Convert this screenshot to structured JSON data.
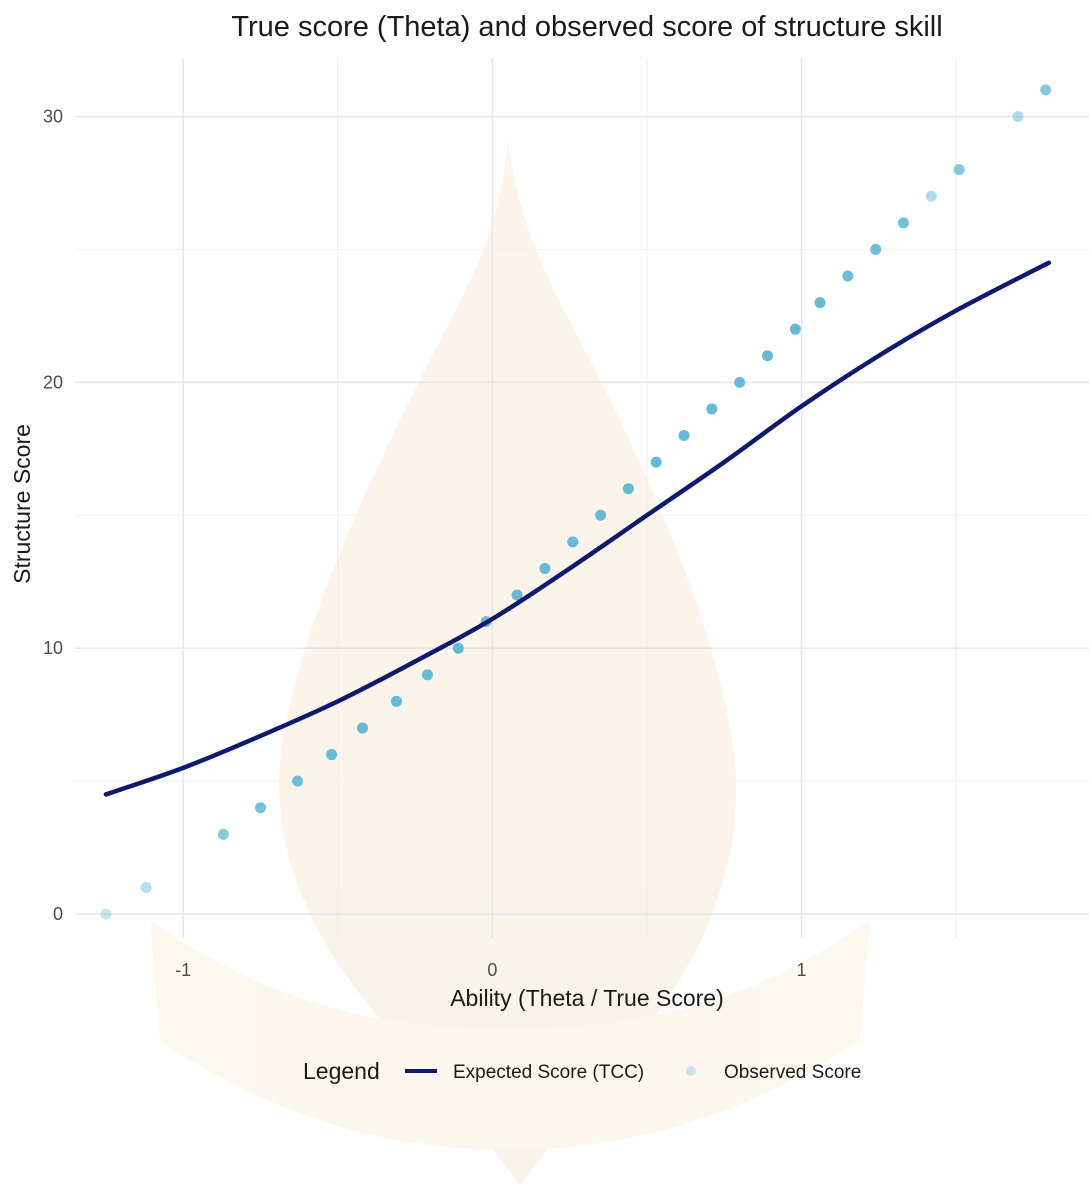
{
  "chart_data": {
    "type": "scatter",
    "title": "True score (Theta) and observed score of structure skill",
    "xlabel": "Ability (Theta / True Score)",
    "ylabel": "Structure Score",
    "xlim": [
      -1.35,
      1.93
    ],
    "ylim": [
      -0.9,
      32.2
    ],
    "x_ticks": [
      {
        "value": -1,
        "label": "-1"
      },
      {
        "value": 0,
        "label": "0"
      },
      {
        "value": 1,
        "label": "1"
      }
    ],
    "x_minor_gridlines": [
      -1,
      -0.5,
      0,
      0.5,
      1,
      1.5
    ],
    "y_ticks": [
      {
        "value": 0,
        "label": "0"
      },
      {
        "value": 10,
        "label": "10"
      },
      {
        "value": 20,
        "label": "20"
      },
      {
        "value": 30,
        "label": "30"
      }
    ],
    "y_minor_gridlines": [
      5,
      15,
      25
    ],
    "grid": true,
    "legend": {
      "title": "Legend",
      "position": "bottom",
      "entries": [
        {
          "label": "Expected Score (TCC)",
          "kind": "line",
          "color": "#0e1a6e"
        },
        {
          "label": "Observed Score",
          "kind": "point",
          "color": "#9fd3e6"
        }
      ]
    },
    "series": [
      {
        "name": "Expected Score (TCC)",
        "kind": "line",
        "color": "#0e1a6e",
        "x": [
          -1.25,
          -1.0,
          -0.75,
          -0.5,
          -0.25,
          0.0,
          0.25,
          0.5,
          0.75,
          1.0,
          1.25,
          1.5,
          1.8
        ],
        "y": [
          4.5,
          5.5,
          6.7,
          8.0,
          9.5,
          11.1,
          13.0,
          15.0,
          17.0,
          19.1,
          21.0,
          22.7,
          24.5
        ]
      },
      {
        "name": "Observed Score",
        "kind": "points",
        "color": "#5bb7d6",
        "x": [
          -1.25,
          -1.12,
          -0.87,
          -0.75,
          -0.63,
          -0.52,
          -0.42,
          -0.31,
          -0.21,
          -0.11,
          -0.02,
          0.08,
          0.17,
          0.26,
          0.35,
          0.44,
          0.53,
          0.62,
          0.71,
          0.8,
          0.89,
          0.98,
          1.06,
          1.15,
          1.24,
          1.33,
          1.42,
          1.51,
          1.7,
          1.79
        ],
        "y": [
          0,
          1,
          3,
          4,
          5,
          6,
          7,
          8,
          9,
          10,
          11,
          12,
          13,
          14,
          15,
          16,
          17,
          18,
          19,
          20,
          21,
          22,
          23,
          24,
          25,
          26,
          27,
          28,
          30,
          31
        ],
        "opacity": [
          0.35,
          0.45,
          0.75,
          0.85,
          0.9,
          0.95,
          0.95,
          0.95,
          0.95,
          0.95,
          0.9,
          0.95,
          0.95,
          0.95,
          0.95,
          0.95,
          0.95,
          0.95,
          0.95,
          0.95,
          0.95,
          0.95,
          0.95,
          0.9,
          0.9,
          0.85,
          0.5,
          0.75,
          0.5,
          0.75
        ]
      }
    ]
  }
}
